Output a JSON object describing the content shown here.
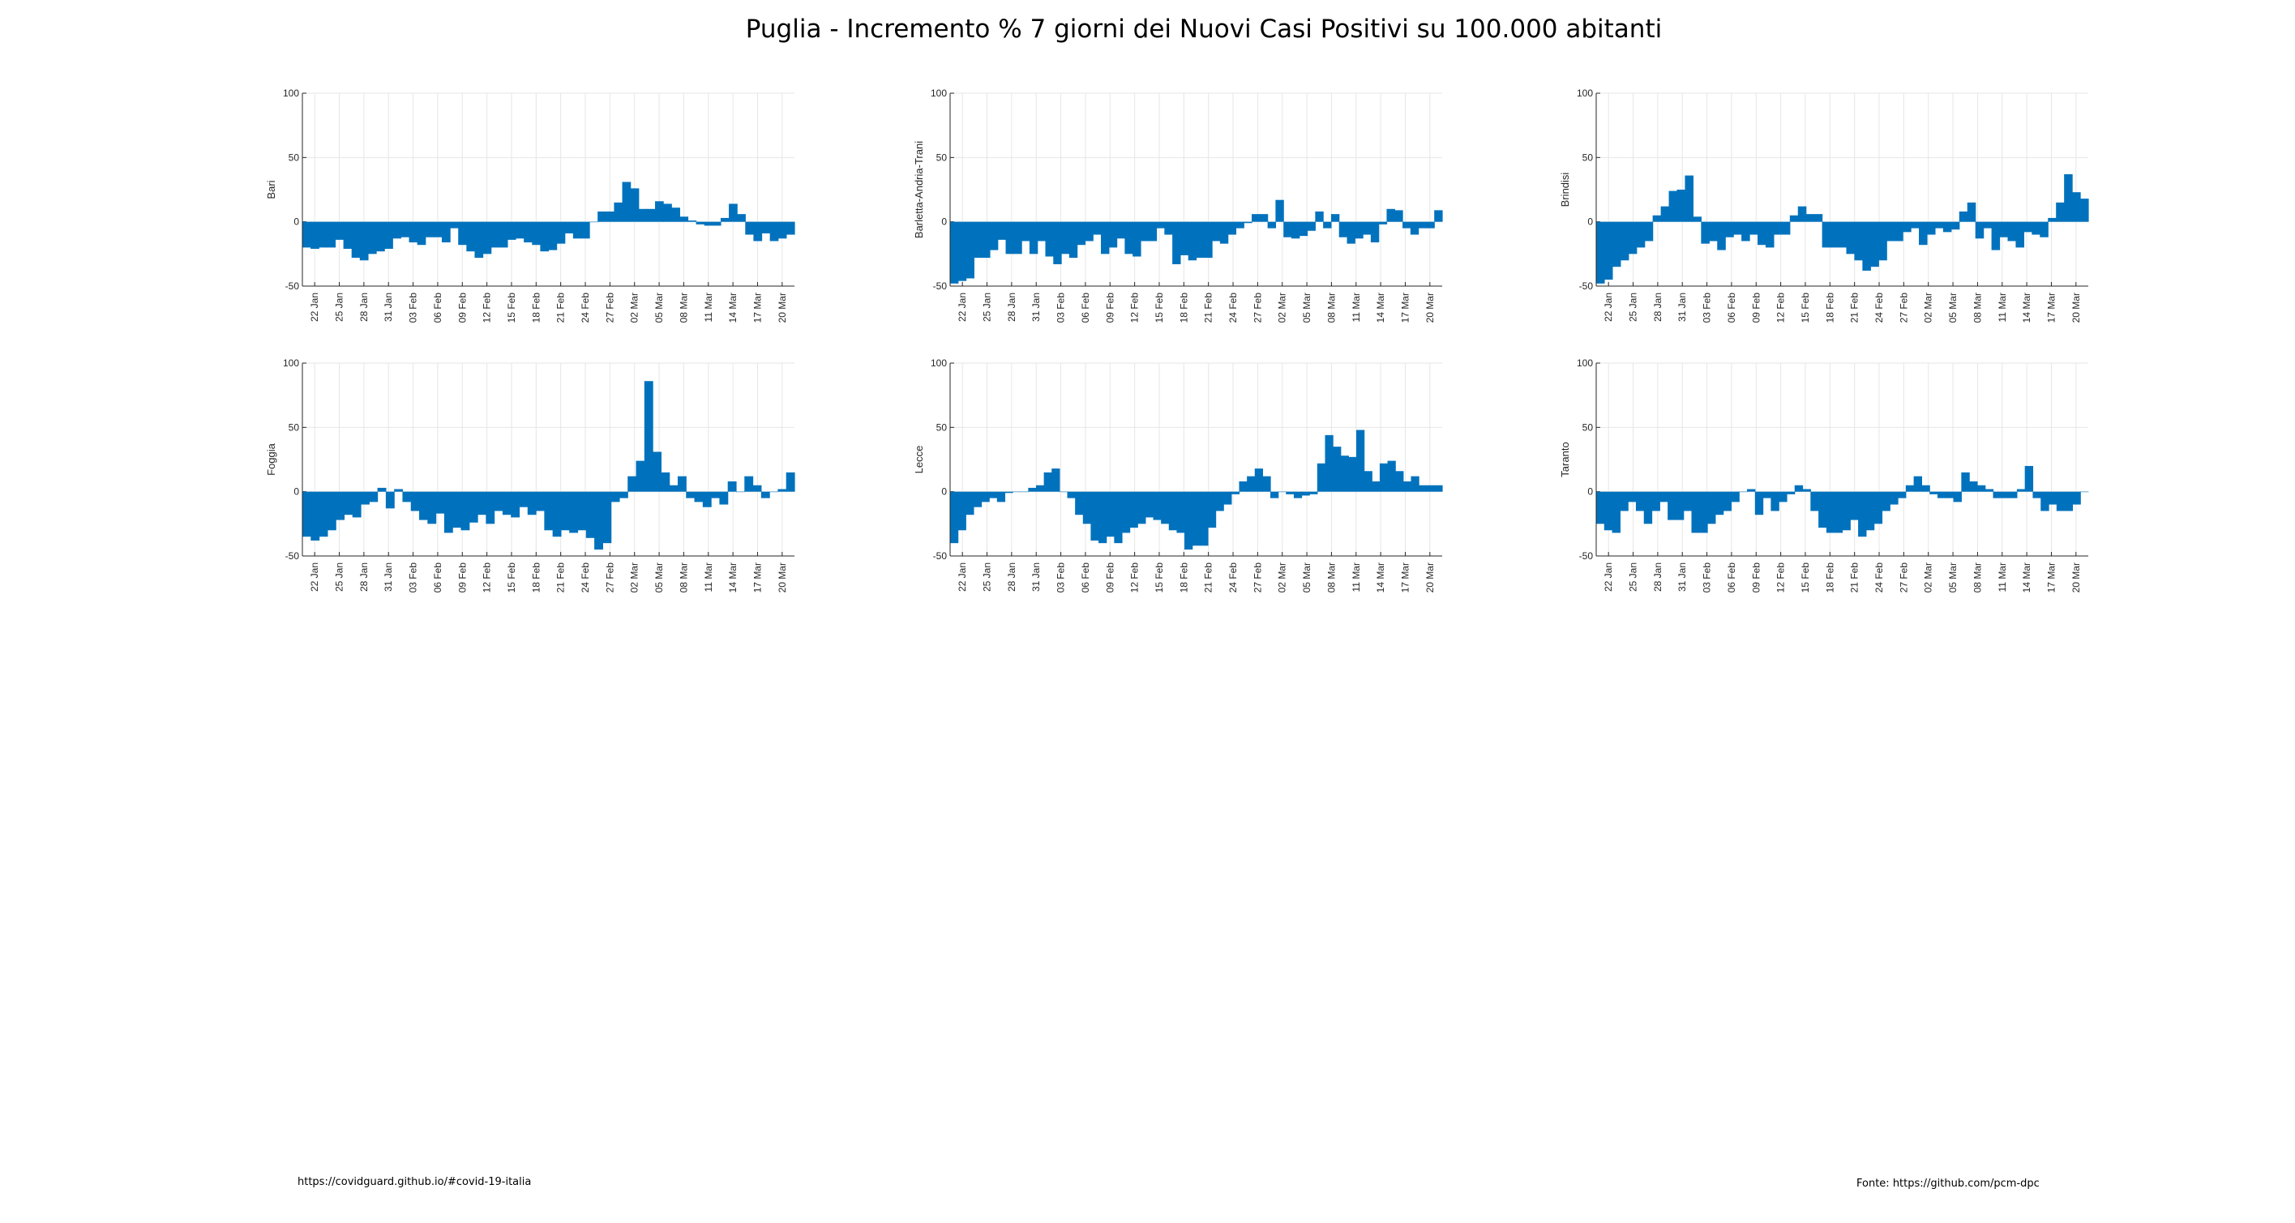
{
  "title": "Puglia - Incremento % 7 giorni dei Nuovi Casi Positivi su 100.000 abitanti",
  "footer": {
    "left": "https://covidguard.github.io/#covid-19-italia",
    "right": "Fonte: https://github.com/pcm-dpc"
  },
  "colors": {
    "bar": "#0072BD",
    "grid": "#e6e6e6",
    "axis": "#262626"
  },
  "chart_data": [
    {
      "type": "bar",
      "ylabel": "Bari",
      "ylim": [
        -50,
        100
      ],
      "yticks": [
        -50,
        0,
        50,
        100
      ],
      "xticks": [
        "22 Jan",
        "25 Jan",
        "28 Jan",
        "31 Jan",
        "03 Feb",
        "06 Feb",
        "09 Feb",
        "12 Feb",
        "15 Feb",
        "18 Feb",
        "21 Feb",
        "24 Feb",
        "27 Feb",
        "02 Mar",
        "05 Mar",
        "08 Mar",
        "11 Mar",
        "14 Mar",
        "17 Mar",
        "20 Mar"
      ],
      "values": [
        -20,
        -21,
        -20,
        -20,
        -14,
        -21,
        -28,
        -30,
        -25,
        -23,
        -21,
        -13,
        -12,
        -16,
        -18,
        -12,
        -12,
        -16,
        -5,
        -18,
        -23,
        -28,
        -25,
        -20,
        -20,
        -14,
        -13,
        -16,
        -18,
        -23,
        -22,
        -17,
        -9,
        -13,
        -13,
        0,
        8,
        8,
        15,
        31,
        26,
        10,
        10,
        16,
        14,
        11,
        4,
        1,
        -2,
        -3,
        -3,
        3,
        14,
        6,
        -10,
        -15,
        -9,
        -15,
        -13,
        -10
      ]
    },
    {
      "type": "bar",
      "ylabel": "Barletta-Andria-Trani",
      "ylim": [
        -50,
        100
      ],
      "yticks": [
        -50,
        0,
        50,
        100
      ],
      "xticks": [
        "22 Jan",
        "25 Jan",
        "28 Jan",
        "31 Jan",
        "03 Feb",
        "06 Feb",
        "09 Feb",
        "12 Feb",
        "15 Feb",
        "18 Feb",
        "21 Feb",
        "24 Feb",
        "27 Feb",
        "02 Mar",
        "05 Mar",
        "08 Mar",
        "11 Mar",
        "14 Mar",
        "17 Mar",
        "20 Mar"
      ],
      "values": [
        -48,
        -46,
        -44,
        -28,
        -28,
        -22,
        -14,
        -25,
        -25,
        -15,
        -25,
        -15,
        -27,
        -33,
        -25,
        -28,
        -18,
        -15,
        -10,
        -25,
        -20,
        -13,
        -25,
        -27,
        -15,
        -15,
        -5,
        -10,
        -33,
        -26,
        -30,
        -28,
        -28,
        -15,
        -17,
        -10,
        -5,
        -1,
        6,
        6,
        -5,
        17,
        -12,
        -13,
        -11,
        -7,
        8,
        -5,
        6,
        -12,
        -17,
        -13,
        -10,
        -16,
        -2,
        10,
        9,
        -5,
        -10,
        -5,
        -5,
        9
      ]
    },
    {
      "type": "bar",
      "ylabel": "Brindisi",
      "ylim": [
        -50,
        100
      ],
      "yticks": [
        -50,
        0,
        50,
        100
      ],
      "xticks": [
        "22 Jan",
        "25 Jan",
        "28 Jan",
        "31 Jan",
        "03 Feb",
        "06 Feb",
        "09 Feb",
        "12 Feb",
        "15 Feb",
        "18 Feb",
        "21 Feb",
        "24 Feb",
        "27 Feb",
        "02 Mar",
        "05 Mar",
        "08 Mar",
        "11 Mar",
        "14 Mar",
        "17 Mar",
        "20 Mar"
      ],
      "values": [
        -48,
        -45,
        -35,
        -30,
        -25,
        -20,
        -15,
        5,
        12,
        24,
        25,
        36,
        4,
        -17,
        -15,
        -22,
        -12,
        -10,
        -15,
        -10,
        -18,
        -20,
        -10,
        -10,
        5,
        12,
        6,
        6,
        -20,
        -20,
        -20,
        -25,
        -30,
        -38,
        -35,
        -30,
        -15,
        -15,
        -8,
        -5,
        -18,
        -10,
        -5,
        -8,
        -6,
        8,
        15,
        -13,
        -5,
        -22,
        -12,
        -15,
        -20,
        -8,
        -10,
        -12,
        3,
        15,
        37,
        23,
        18
      ]
    },
    {
      "type": "bar",
      "ylabel": "Foggia",
      "ylim": [
        -50,
        100
      ],
      "yticks": [
        -50,
        0,
        50,
        100
      ],
      "xticks": [
        "22 Jan",
        "25 Jan",
        "28 Jan",
        "31 Jan",
        "03 Feb",
        "06 Feb",
        "09 Feb",
        "12 Feb",
        "15 Feb",
        "18 Feb",
        "21 Feb",
        "24 Feb",
        "27 Feb",
        "02 Mar",
        "05 Mar",
        "08 Mar",
        "11 Mar",
        "14 Mar",
        "17 Mar",
        "20 Mar"
      ],
      "values": [
        -35,
        -38,
        -35,
        -30,
        -22,
        -18,
        -20,
        -10,
        -8,
        3,
        -13,
        2,
        -8,
        -15,
        -22,
        -25,
        -17,
        -32,
        -28,
        -30,
        -24,
        -18,
        -25,
        -15,
        -18,
        -20,
        -12,
        -18,
        -15,
        -30,
        -35,
        -30,
        -32,
        -30,
        -36,
        -45,
        -40,
        -8,
        -5,
        12,
        24,
        86,
        31,
        15,
        5,
        12,
        -5,
        -8,
        -12,
        -5,
        -10,
        8,
        0,
        12,
        5,
        -5,
        0,
        2,
        15
      ]
    },
    {
      "type": "bar",
      "ylabel": "Lecce",
      "ylim": [
        -50,
        100
      ],
      "yticks": [
        -50,
        0,
        50,
        100
      ],
      "xticks": [
        "22 Jan",
        "25 Jan",
        "28 Jan",
        "31 Jan",
        "03 Feb",
        "06 Feb",
        "09 Feb",
        "12 Feb",
        "15 Feb",
        "18 Feb",
        "21 Feb",
        "24 Feb",
        "27 Feb",
        "02 Mar",
        "05 Mar",
        "08 Mar",
        "11 Mar",
        "14 Mar",
        "17 Mar",
        "20 Mar"
      ],
      "values": [
        -40,
        -30,
        -18,
        -12,
        -8,
        -5,
        -8,
        -1,
        0,
        0,
        3,
        5,
        15,
        18,
        0,
        -5,
        -18,
        -25,
        -38,
        -40,
        -35,
        -40,
        -32,
        -28,
        -25,
        -20,
        -22,
        -25,
        -30,
        -32,
        -45,
        -42,
        -42,
        -28,
        -15,
        -10,
        -2,
        8,
        12,
        18,
        12,
        -5,
        0,
        -2,
        -5,
        -3,
        -2,
        22,
        44,
        35,
        28,
        27,
        48,
        16,
        8,
        22,
        24,
        16,
        8,
        12,
        5,
        5,
        5
      ]
    },
    {
      "type": "bar",
      "ylabel": "Taranto",
      "ylim": [
        -50,
        100
      ],
      "yticks": [
        -50,
        0,
        50,
        100
      ],
      "xticks": [
        "22 Jan",
        "25 Jan",
        "28 Jan",
        "31 Jan",
        "03 Feb",
        "06 Feb",
        "09 Feb",
        "12 Feb",
        "15 Feb",
        "18 Feb",
        "21 Feb",
        "24 Feb",
        "27 Feb",
        "02 Mar",
        "05 Mar",
        "08 Mar",
        "11 Mar",
        "14 Mar",
        "17 Mar",
        "20 Mar"
      ],
      "values": [
        -25,
        -30,
        -32,
        -15,
        -8,
        -15,
        -25,
        -15,
        -8,
        -22,
        -22,
        -15,
        -32,
        -32,
        -25,
        -18,
        -15,
        -8,
        0,
        2,
        -18,
        -5,
        -15,
        -8,
        -2,
        5,
        2,
        -15,
        -28,
        -32,
        -32,
        -30,
        -22,
        -35,
        -30,
        -25,
        -15,
        -10,
        -5,
        5,
        12,
        5,
        -2,
        -5,
        -5,
        -8,
        15,
        8,
        5,
        2,
        -5,
        -5,
        -5,
        2,
        20,
        -5,
        -15,
        -10,
        -15,
        -15,
        -10,
        0
      ]
    }
  ]
}
